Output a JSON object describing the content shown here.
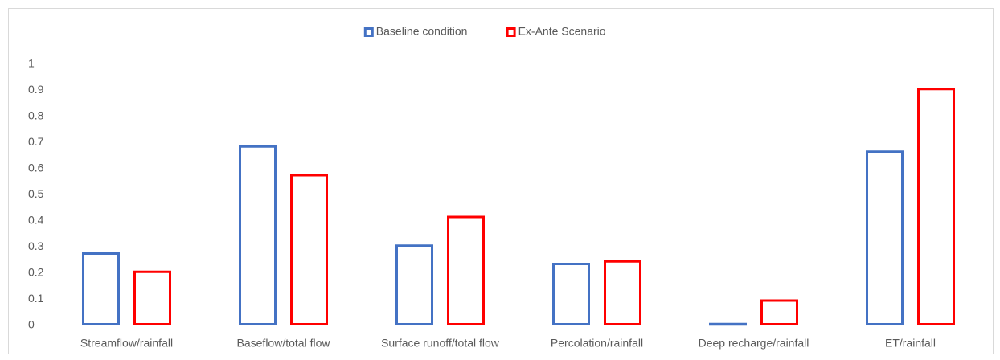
{
  "chart_data": {
    "type": "bar",
    "categories": [
      "Streamflow/rainfall",
      "Baseflow/total flow",
      "Surface runoff/total flow",
      "Percolation/rainfall",
      "Deep recharge/rainfall",
      "ET/rainfall"
    ],
    "series": [
      {
        "name": "Baseline condition",
        "color": "#4472c4",
        "values": [
          0.28,
          0.69,
          0.31,
          0.24,
          0.01,
          0.67
        ]
      },
      {
        "name": "Ex-Ante Scenario",
        "color": "#ff0000",
        "values": [
          0.21,
          0.58,
          0.42,
          0.25,
          0.1,
          0.91
        ]
      }
    ],
    "ylim": [
      0,
      1
    ],
    "yticks": [
      0,
      0.1,
      0.2,
      0.3,
      0.4,
      0.5,
      0.6,
      0.7,
      0.8,
      0.9,
      1
    ],
    "grid": false,
    "legend": "top",
    "fill": "none"
  }
}
